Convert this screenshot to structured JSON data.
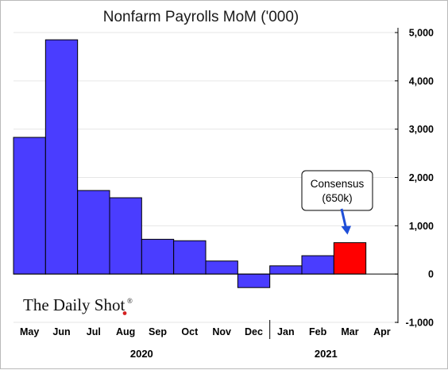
{
  "chart_data": {
    "type": "bar",
    "title": "Nonfarm Payrolls MoM ('000)",
    "categories": [
      "May",
      "Jun",
      "Jul",
      "Aug",
      "Sep",
      "Oct",
      "Nov",
      "Dec",
      "Jan",
      "Feb",
      "Mar",
      "Apr"
    ],
    "series": [
      {
        "values": [
          2830,
          4850,
          1730,
          1580,
          720,
          690,
          270,
          -280,
          170,
          380,
          650,
          null
        ]
      }
    ],
    "highlight": {
      "category": "Mar",
      "color": "#ff0000"
    },
    "bar_color": "#4a3dff",
    "ylim": [
      -1000,
      5000
    ],
    "yticks": [
      5000,
      4000,
      3000,
      2000,
      1000,
      0,
      -1000
    ],
    "ytick_labels": [
      "5,000",
      "4,000",
      "3,000",
      "2,000",
      "1,000",
      "0",
      "-1,000"
    ],
    "year_labels": [
      "2020",
      "2021"
    ],
    "y_axis_side": "right",
    "grid": "horizontal",
    "annotation": {
      "line1": "Consensus",
      "line2": "(650k)",
      "points_to": "Mar",
      "arrow_color": "#1f4fd8"
    }
  },
  "branding": {
    "name": "The Daily Shot",
    "mark": "®"
  }
}
